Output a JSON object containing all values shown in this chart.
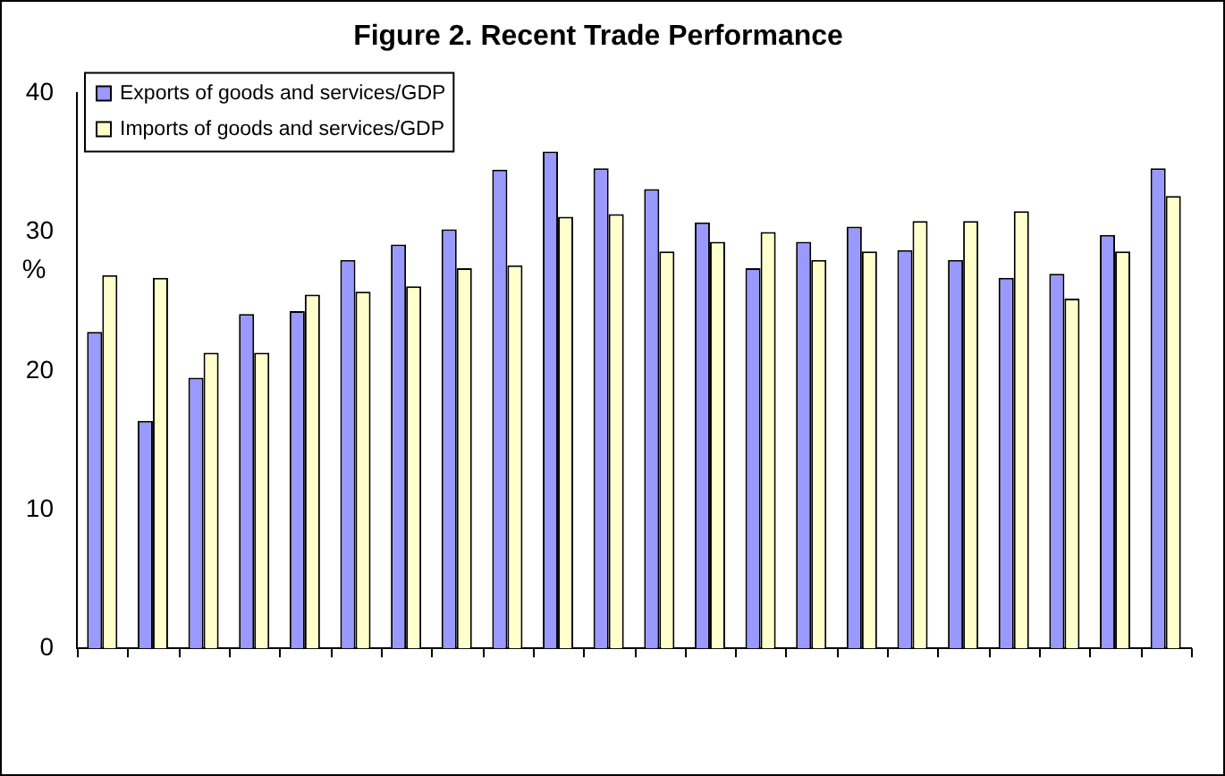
{
  "chart_data": {
    "type": "bar",
    "title": "Figure 2. Recent Trade Performance",
    "ylabel": "%",
    "categories": [
      null,
      null,
      null,
      null,
      null,
      null,
      null,
      null,
      null,
      null,
      null,
      null,
      null,
      null,
      null,
      null,
      null,
      null,
      null,
      null,
      null,
      null
    ],
    "series": [
      {
        "name": "Exports of goods and services/GDP",
        "color": "#9999ff",
        "values": [
          22.8,
          16.4,
          19.5,
          24.1,
          24.3,
          28,
          29.1,
          30.2,
          34.5,
          35.8,
          34.6,
          33.1,
          30.7,
          27.4,
          29.3,
          30.4,
          28.7,
          28,
          26.7,
          27,
          29.8,
          34.6
        ]
      },
      {
        "name": "Imports of goods and services/GDP",
        "color": "#ffffcc",
        "values": [
          26.9,
          26.7,
          21.3,
          21.3,
          25.5,
          25.7,
          26.1,
          27.4,
          27.6,
          31.1,
          31.3,
          28.6,
          29.3,
          30,
          28,
          28.6,
          30.8,
          30.8,
          31.5,
          25.2,
          28.6,
          32.6
        ]
      }
    ],
    "ylim": [
      0,
      40
    ],
    "yticks": [
      0,
      10,
      20,
      30,
      40
    ],
    "grid": false,
    "legend": "top left"
  }
}
